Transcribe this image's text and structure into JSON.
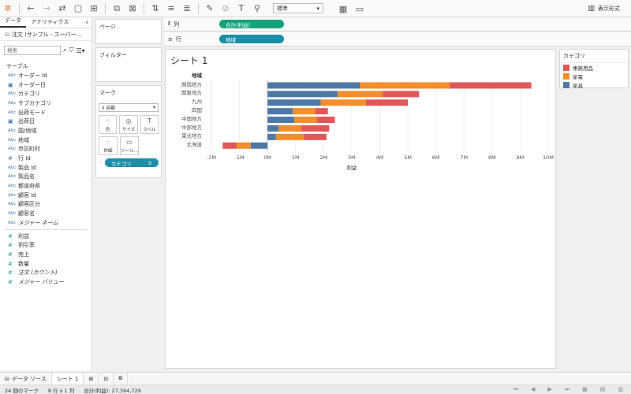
{
  "toolbar": {
    "fit_select": "標準",
    "show_me": "表示形式"
  },
  "left_panel": {
    "tabs": [
      "データ",
      "アナリティクス"
    ],
    "datasource": "注文 (サンプル - スーパー...",
    "search_placeholder": "検索",
    "tables_title": "テーブル",
    "dimensions": [
      {
        "type": "Abc",
        "name": "オーダー Id"
      },
      {
        "type": "cal",
        "name": "オーダー日"
      },
      {
        "type": "Abc",
        "name": "カテゴリ"
      },
      {
        "type": "Abc",
        "name": "サブカテゴリ"
      },
      {
        "type": "Abc",
        "name": "出荷モード"
      },
      {
        "type": "cal",
        "name": "出荷日"
      },
      {
        "type": "Abc",
        "name": "国/地域"
      },
      {
        "type": "Abc",
        "name": "地域"
      },
      {
        "type": "Abc",
        "name": "市区町村"
      },
      {
        "type": "#",
        "name": "行 Id"
      },
      {
        "type": "Abc",
        "name": "製品 Id"
      },
      {
        "type": "Abc",
        "name": "製品名"
      },
      {
        "type": "Abc",
        "name": "都道府県"
      },
      {
        "type": "Abc",
        "name": "顧客 Id"
      },
      {
        "type": "Abc",
        "name": "顧客区分"
      },
      {
        "type": "Abc",
        "name": "顧客名"
      },
      {
        "type": "Abc",
        "name": "メジャー ネーム",
        "italic": true
      }
    ],
    "measures": [
      {
        "type": "#",
        "name": "利益"
      },
      {
        "type": "#",
        "name": "割引率"
      },
      {
        "type": "#",
        "name": "売上"
      },
      {
        "type": "#",
        "name": "数量"
      },
      {
        "type": "#",
        "name": "注文 (カウント)",
        "italic": true
      },
      {
        "type": "#",
        "name": "メジャー バリュー",
        "italic": true
      }
    ]
  },
  "cards": {
    "pages": "ページ",
    "filters": "フィルター",
    "marks": "マーク",
    "marks_type": "自動",
    "mark_buttons": [
      "色",
      "サイズ",
      "ラベル",
      "詳細",
      "ツール..."
    ],
    "color_pill": "カテゴリ"
  },
  "shelves": {
    "columns_label": "列",
    "columns_pill": "合計(利益)",
    "rows_label": "行",
    "rows_pill": "地域"
  },
  "sheet": {
    "title": "シート 1"
  },
  "legend": {
    "title": "カテゴリ",
    "items": [
      {
        "name": "事務用品",
        "color": "#e15759"
      },
      {
        "name": "家電",
        "color": "#f28e2b"
      },
      {
        "name": "家具",
        "color": "#4e79a7"
      }
    ]
  },
  "chart_data": {
    "type": "bar",
    "orientation": "horizontal",
    "stacked": true,
    "row_header": "地域",
    "categories": [
      "関西地方",
      "関東地方",
      "九州",
      "四国",
      "中国地方",
      "中部地方",
      "東北地方",
      "北海道"
    ],
    "series": [
      {
        "name": "家具",
        "color": "#4e79a7",
        "values": [
          3.3,
          2.5,
          1.9,
          0.9,
          0.95,
          0.4,
          0.3,
          -0.6
        ]
      },
      {
        "name": "家電",
        "color": "#f28e2b",
        "values": [
          3.2,
          1.6,
          1.6,
          0.8,
          0.8,
          0.8,
          1.0,
          -0.5
        ]
      },
      {
        "name": "事務用品",
        "color": "#e15759",
        "values": [
          2.9,
          1.3,
          1.5,
          0.45,
          0.65,
          1.0,
          0.8,
          -0.5
        ]
      }
    ],
    "xlabel": "利益",
    "xlim": [
      -2,
      10
    ],
    "xticks": [
      "-2M",
      "-1M",
      "0M",
      "1M",
      "2M",
      "3M",
      "4M",
      "5M",
      "6M",
      "7M",
      "8M",
      "9M",
      "10M"
    ],
    "grid": true
  },
  "bottom_tabs": {
    "datasource": "データ ソース",
    "sheet": "シート 1"
  },
  "status": {
    "marks": "24 個のマーク",
    "rows_cols": "8 行 x 1 列",
    "sum": "合計(利益): 27,394,729"
  }
}
